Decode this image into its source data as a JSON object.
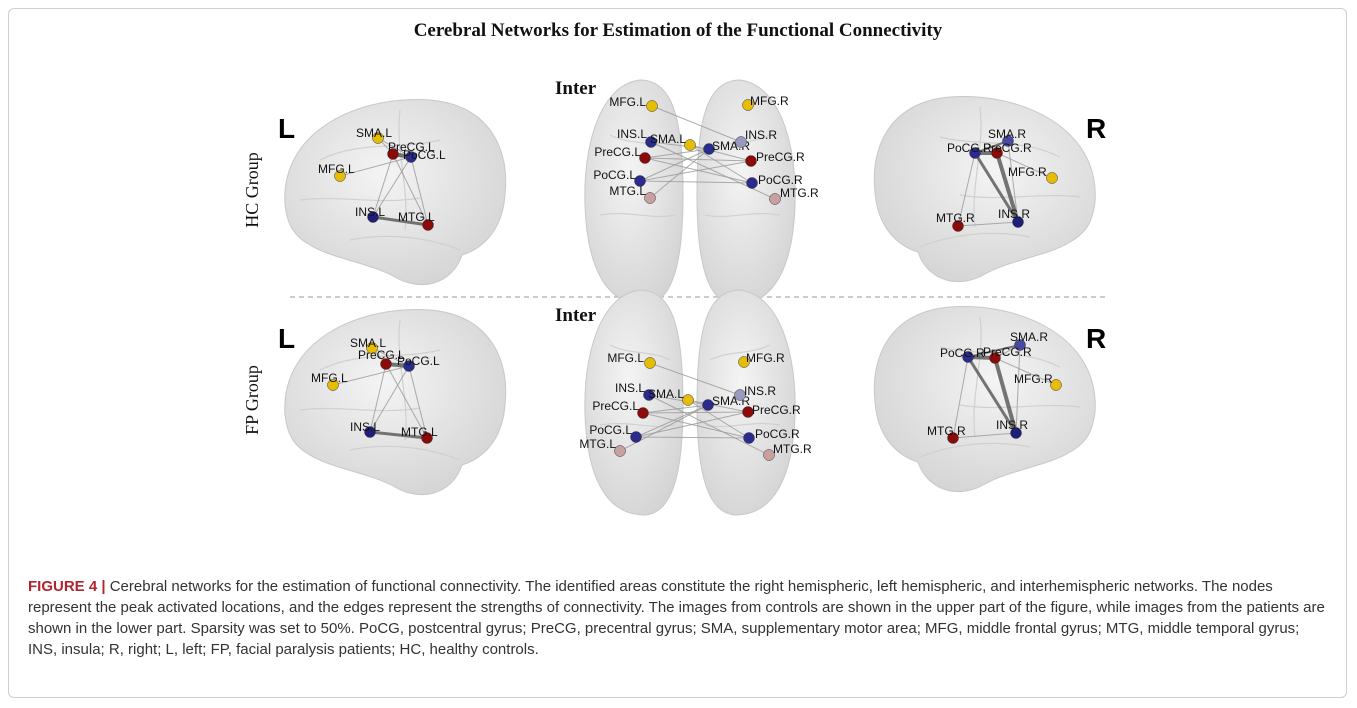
{
  "figure": {
    "title": "Cerebral Networks for Estimation of the Functional Connectivity",
    "panels": [
      {
        "group": "HC Group",
        "left_label": "L",
        "right_label": "R",
        "inter_label": "Inter",
        "left_nodes": [
          {
            "label": "SMA.L",
            "color": "#e6bd00"
          },
          {
            "label": "PreCG.L",
            "color": "#8b0a0a"
          },
          {
            "label": "PoCG.L",
            "color": "#2b2b8c"
          },
          {
            "label": "MFG.L",
            "color": "#e6bd00"
          },
          {
            "label": "INS.L",
            "color": "#1f1f7a"
          },
          {
            "label": "MTG.L",
            "color": "#8b0a0a"
          }
        ],
        "inter_nodes": [
          {
            "label": "MFG.L",
            "color": "#e6bd00"
          },
          {
            "label": "MFG.R",
            "color": "#e6bd00"
          },
          {
            "label": "INS.L",
            "color": "#2b2b8c"
          },
          {
            "label": "SMA.L",
            "color": "#e6bd00"
          },
          {
            "label": "SMA.R",
            "color": "#2b2b8c"
          },
          {
            "label": "INS.R",
            "color": "#9a9ac0"
          },
          {
            "label": "PreCG.L",
            "color": "#8b0a0a"
          },
          {
            "label": "PreCG.R",
            "color": "#8b0a0a"
          },
          {
            "label": "PoCG.L",
            "color": "#2b2b8c"
          },
          {
            "label": "PoCG.R",
            "color": "#2b2b8c"
          },
          {
            "label": "MTG.L",
            "color": "#c9a0a0"
          },
          {
            "label": "MTG.R",
            "color": "#c9a0a0"
          }
        ],
        "right_nodes": [
          {
            "label": "SMA.R",
            "color": "#4a4aa0"
          },
          {
            "label": "PoCG.R",
            "color": "#2b2b8c"
          },
          {
            "label": "PreCG.R",
            "color": "#8b0a0a"
          },
          {
            "label": "MFG.R",
            "color": "#e6bd00"
          },
          {
            "label": "MTG.R",
            "color": "#8b0a0a"
          },
          {
            "label": "INS.R",
            "color": "#1f1f7a"
          }
        ]
      },
      {
        "group": "FP Group",
        "left_label": "L",
        "right_label": "R",
        "inter_label": "Inter",
        "left_nodes": [
          {
            "label": "SMA.L",
            "color": "#e6bd00"
          },
          {
            "label": "PreCG.L",
            "color": "#8b0a0a"
          },
          {
            "label": "PoCG.L",
            "color": "#2b2b8c"
          },
          {
            "label": "MFG.L",
            "color": "#e6bd00"
          },
          {
            "label": "INS.L",
            "color": "#1f1f7a"
          },
          {
            "label": "MTG.L",
            "color": "#8b0a0a"
          }
        ],
        "inter_nodes": [
          {
            "label": "MFG.L",
            "color": "#e6bd00"
          },
          {
            "label": "MFG.R",
            "color": "#e6bd00"
          },
          {
            "label": "INS.L",
            "color": "#2b2b8c"
          },
          {
            "label": "SMA.L",
            "color": "#e6bd00"
          },
          {
            "label": "SMA.R",
            "color": "#2b2b8c"
          },
          {
            "label": "INS.R",
            "color": "#9a9ac0"
          },
          {
            "label": "PreCG.L",
            "color": "#8b0a0a"
          },
          {
            "label": "PreCG.R",
            "color": "#8b0a0a"
          },
          {
            "label": "PoCG.L",
            "color": "#2b2b8c"
          },
          {
            "label": "PoCG.R",
            "color": "#2b2b8c"
          },
          {
            "label": "MTG.L",
            "color": "#c9a0a0"
          },
          {
            "label": "MTG.R",
            "color": "#c9a0a0"
          }
        ],
        "right_nodes": [
          {
            "label": "SMA.R",
            "color": "#4a4aa0"
          },
          {
            "label": "PoCG.R",
            "color": "#2b2b8c"
          },
          {
            "label": "PreCG.R",
            "color": "#8b0a0a"
          },
          {
            "label": "MFG.R",
            "color": "#e6bd00"
          },
          {
            "label": "MTG.R",
            "color": "#8b0a0a"
          },
          {
            "label": "INS.R",
            "color": "#1f1f7a"
          }
        ]
      }
    ]
  },
  "caption": {
    "label": "FIGURE 4 |",
    "text": "Cerebral networks for the estimation of functional connectivity. The identified areas constitute the right hemispheric, left hemispheric, and interhemispheric networks. The nodes represent the peak activated locations, and the edges represent the strengths of connectivity. The images from controls are shown in the upper part of the figure, while images from the patients are shown in the lower part. Sparsity was set to 50%. PoCG, postcentral gyrus; PreCG, precentral gyrus; SMA, supplementary motor area; MFG, middle frontal gyrus; MTG, middle temporal gyrus; INS, insula; R, right; L, left; FP, facial paralysis patients; HC, healthy controls."
  }
}
